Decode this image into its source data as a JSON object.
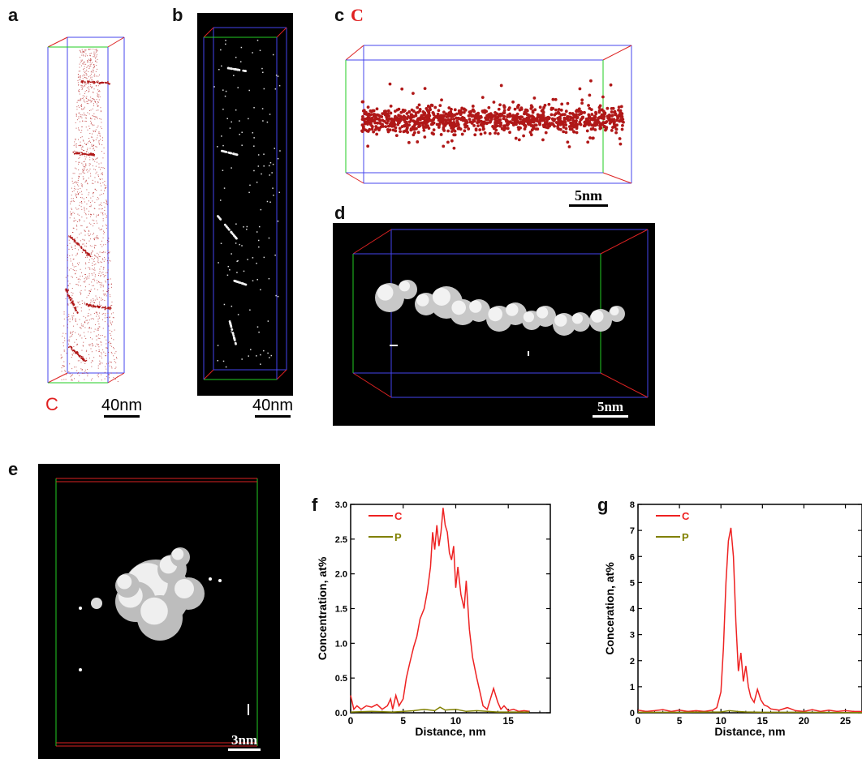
{
  "panels": {
    "a": {
      "label": "a",
      "element": "C",
      "scale": "40nm"
    },
    "b": {
      "label": "b",
      "scale": "40nm"
    },
    "c": {
      "label": "c",
      "element": "C",
      "scale": "5nm"
    },
    "d": {
      "label": "d",
      "scale": "5nm"
    },
    "e": {
      "label": "e",
      "scale": "3nm"
    },
    "f": {
      "label": "f"
    },
    "g": {
      "label": "g"
    }
  },
  "colors": {
    "C": "#ee2222",
    "P": "#808000",
    "atoms": "#b01818",
    "box_blue": "#4444ee",
    "box_green": "#22cc22",
    "box_red": "#dd2222"
  },
  "chart_data": [
    {
      "type": "line",
      "panel": "f",
      "xlabel": "Distance, nm",
      "ylabel": "Concentration, at%",
      "xlim": [
        0,
        19
      ],
      "ylim": [
        0,
        3.0
      ],
      "xticks": [
        0,
        5,
        10,
        15
      ],
      "yticks": [
        0.0,
        0.5,
        1.0,
        1.5,
        2.0,
        2.5,
        3.0
      ],
      "ytick_labels": [
        "0.0",
        "0.5",
        "1.0",
        "1.5",
        "2.0",
        "2.5",
        "3.0"
      ],
      "legend": "top-left",
      "series": [
        {
          "name": "C",
          "color": "#ee2222",
          "x": [
            0,
            0.3,
            0.6,
            1,
            1.5,
            2,
            2.5,
            3,
            3.5,
            3.8,
            4,
            4.3,
            4.6,
            5,
            5.3,
            5.6,
            6,
            6.3,
            6.6,
            7,
            7.3,
            7.6,
            7.8,
            8,
            8.2,
            8.4,
            8.6,
            8.8,
            9,
            9.2,
            9.4,
            9.6,
            9.8,
            10,
            10.2,
            10.5,
            10.8,
            11,
            11.3,
            11.6,
            12,
            12.3,
            12.6,
            13,
            13.3,
            13.6,
            14,
            14.3,
            14.6,
            15,
            15.5,
            16,
            16.5,
            17
          ],
          "y": [
            0.25,
            0.05,
            0.1,
            0.05,
            0.1,
            0.08,
            0.12,
            0.05,
            0.1,
            0.2,
            0.05,
            0.25,
            0.1,
            0.2,
            0.5,
            0.7,
            0.95,
            1.1,
            1.35,
            1.5,
            1.75,
            2.1,
            2.6,
            2.35,
            2.7,
            2.4,
            2.6,
            2.95,
            2.7,
            2.6,
            2.3,
            2.2,
            2.4,
            1.8,
            2.1,
            1.7,
            1.5,
            1.9,
            1.2,
            0.8,
            0.5,
            0.3,
            0.1,
            0.05,
            0.2,
            0.35,
            0.15,
            0.05,
            0.1,
            0.03,
            0.05,
            0.02,
            0.03,
            0.02
          ]
        },
        {
          "name": "P",
          "color": "#808000",
          "x": [
            0,
            2,
            4,
            6,
            7,
            8,
            8.5,
            9,
            10,
            11,
            12,
            14,
            16,
            17
          ],
          "y": [
            0.01,
            0.02,
            0.01,
            0.03,
            0.05,
            0.03,
            0.08,
            0.04,
            0.05,
            0.02,
            0.03,
            0.01,
            0.01,
            0.01
          ]
        }
      ]
    },
    {
      "type": "line",
      "panel": "g",
      "xlabel": "Distance, nm",
      "ylabel": "Conceration, at%",
      "xlim": [
        0,
        27
      ],
      "ylim": [
        0,
        8
      ],
      "xticks": [
        0,
        5,
        10,
        15,
        20,
        25
      ],
      "yticks": [
        0,
        1,
        2,
        3,
        4,
        5,
        6,
        7,
        8
      ],
      "ytick_labels": [
        "0",
        "1",
        "2",
        "3",
        "4",
        "5",
        "6",
        "7",
        "8"
      ],
      "legend": "top-left",
      "series": [
        {
          "name": "C",
          "color": "#ee2222",
          "x": [
            0,
            1,
            2,
            3,
            4,
            5,
            6,
            7,
            8,
            9,
            9.5,
            10,
            10.3,
            10.6,
            10.9,
            11.2,
            11.5,
            11.8,
            12.1,
            12.4,
            12.7,
            13,
            13.3,
            13.6,
            14,
            14.4,
            14.8,
            15.2,
            15.6,
            16,
            17,
            18,
            19,
            20,
            21,
            22,
            23,
            24,
            25,
            26,
            27
          ],
          "y": [
            0.1,
            0.05,
            0.08,
            0.12,
            0.05,
            0.1,
            0.05,
            0.08,
            0.05,
            0.1,
            0.2,
            0.8,
            2.5,
            5.0,
            6.6,
            7.1,
            6.0,
            3.5,
            1.6,
            2.3,
            1.2,
            1.8,
            1.0,
            0.6,
            0.4,
            0.9,
            0.5,
            0.3,
            0.25,
            0.15,
            0.1,
            0.2,
            0.08,
            0.05,
            0.12,
            0.05,
            0.1,
            0.05,
            0.08,
            0.05,
            0.05
          ]
        },
        {
          "name": "P",
          "color": "#808000",
          "x": [
            0,
            5,
            10,
            11,
            12,
            13,
            15,
            20,
            25,
            27
          ],
          "y": [
            0.02,
            0.02,
            0.03,
            0.08,
            0.05,
            0.03,
            0.02,
            0.02,
            0.01,
            0.01
          ]
        }
      ]
    }
  ]
}
